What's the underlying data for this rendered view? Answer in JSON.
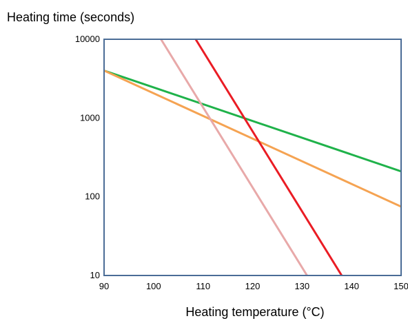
{
  "chart_data": {
    "type": "line",
    "ylabel": "Heating time (seconds)",
    "xlabel": "Heating temperature (°C)",
    "x_ticks": [
      "90",
      "100",
      "110",
      "120",
      "130",
      "140",
      "150"
    ],
    "y_ticks": [
      "10",
      "100",
      "1000",
      "10000"
    ],
    "xlim": [
      90,
      150
    ],
    "ylim": [
      10,
      10000
    ],
    "y_scale": "log",
    "grid": false,
    "frame_color": "#4a6c96",
    "series": [
      {
        "color": "#1fb24a",
        "x": [
          90,
          150
        ],
        "y": [
          4000,
          210
        ]
      },
      {
        "color": "#f5a352",
        "x": [
          90,
          150
        ],
        "y": [
          4000,
          75
        ]
      },
      {
        "color": "#e8a9a9",
        "x": [
          101.5,
          131
        ],
        "y": [
          10000,
          10
        ]
      },
      {
        "color": "#ea1c24",
        "x": [
          108.5,
          138
        ],
        "y": [
          10000,
          10
        ]
      }
    ]
  }
}
